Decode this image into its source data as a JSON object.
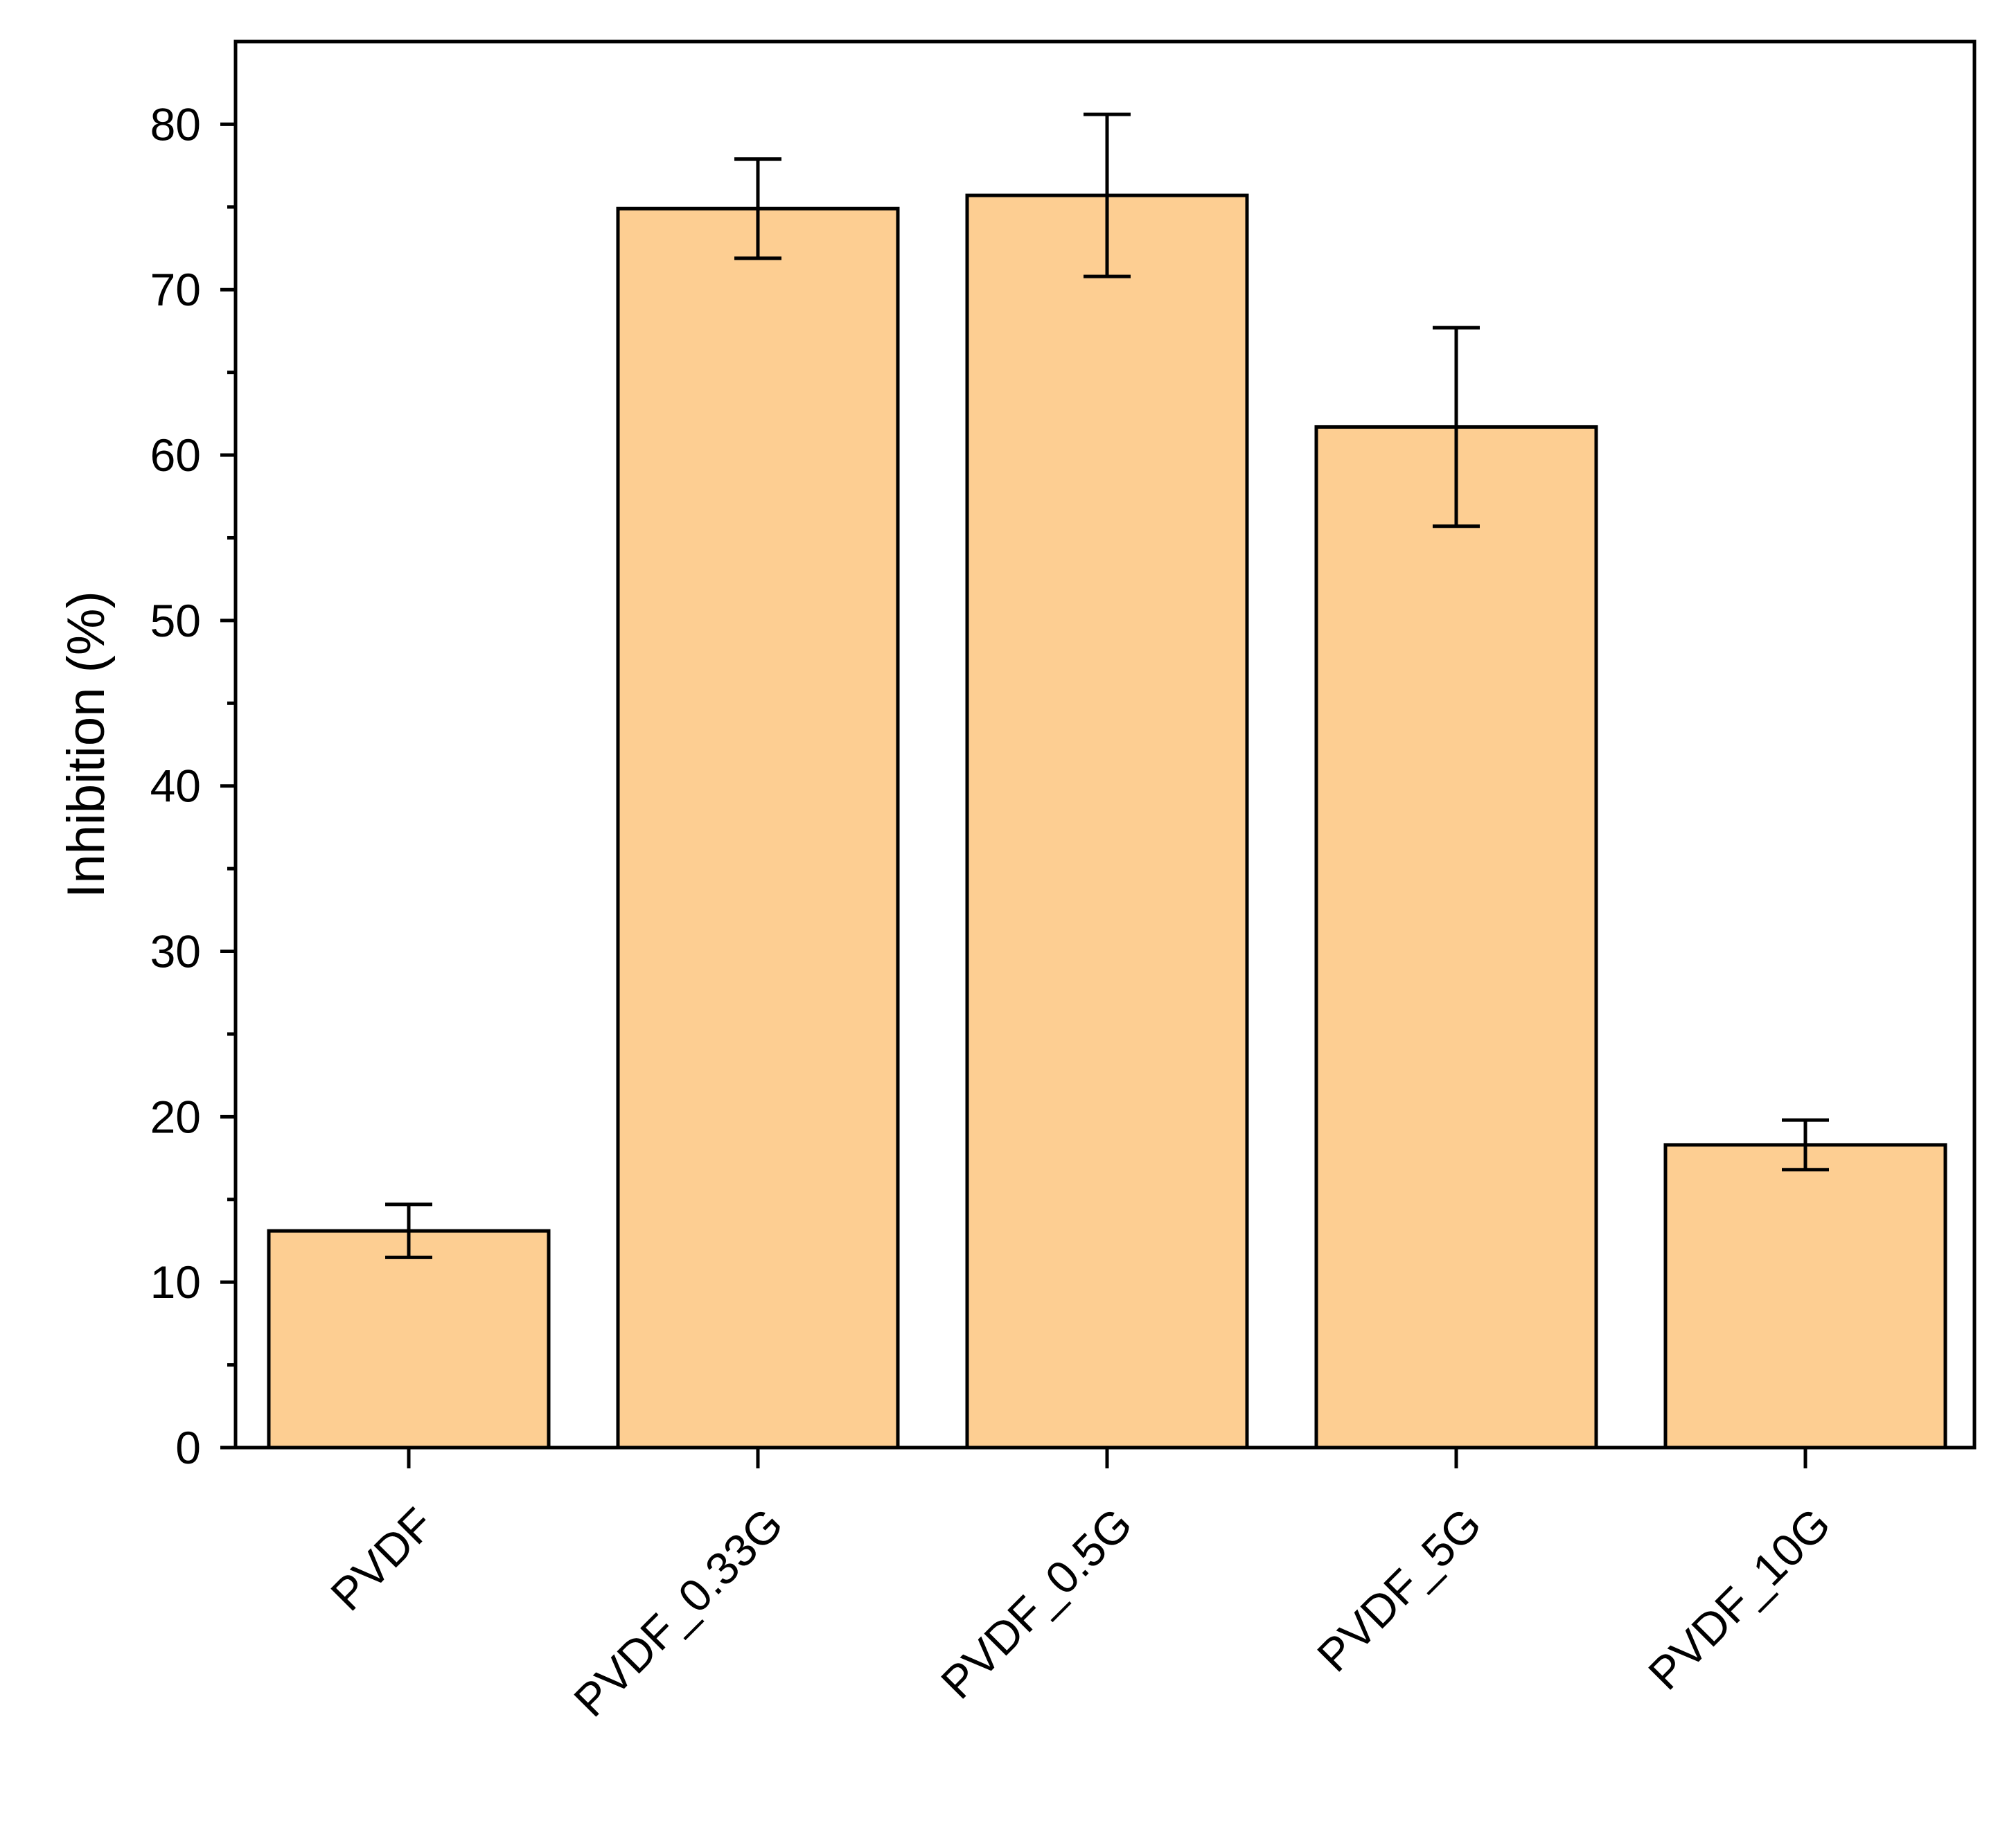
{
  "chart_data": {
    "type": "bar",
    "title": "",
    "xlabel": "",
    "ylabel": "Inhibition (%)",
    "categories": [
      "PVDF",
      "PVDF_0.33G",
      "PVDF_0.5G",
      "PVDF_5G",
      "PVDF_10G"
    ],
    "values": [
      13.1,
      74.9,
      75.7,
      61.7,
      18.3
    ],
    "errors": [
      1.6,
      3.0,
      4.9,
      6.0,
      1.5
    ],
    "ylim": [
      0,
      85
    ],
    "yticks": [
      0,
      10,
      20,
      30,
      40,
      50,
      60,
      70,
      80
    ],
    "ytick_labels": [
      "0",
      "10",
      "20",
      "30",
      "40",
      "50",
      "60",
      "70",
      "80"
    ],
    "y_minor_step": 5,
    "bar_color": "#FDCE92",
    "edge_color": "#000000",
    "grid": false,
    "legend": "none",
    "frame": "closed box"
  }
}
